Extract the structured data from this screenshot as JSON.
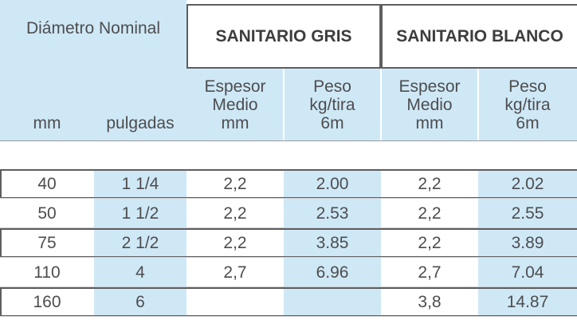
{
  "header": {
    "nominal_title": "Diámetro Nominal",
    "col_mm": "mm",
    "col_pulgadas": "pulgadas",
    "group_gris": "SANITARIO GRIS",
    "group_blanco": "SANITARIO BLANCO",
    "espesor": "Espesor\nMedio\nmm",
    "peso": "Peso\nkg/tira\n6m"
  },
  "rows": [
    {
      "mm": "40",
      "pulgadas": "1 1/4",
      "gris_espesor": "2,2",
      "gris_peso": "2.00",
      "blanco_espesor": "2,2",
      "blanco_peso": "2.02"
    },
    {
      "mm": "50",
      "pulgadas": "1 1/2",
      "gris_espesor": "2,2",
      "gris_peso": "2.53",
      "blanco_espesor": "2,2",
      "blanco_peso": "2.55"
    },
    {
      "mm": "75",
      "pulgadas": "2 1/2",
      "gris_espesor": "2,2",
      "gris_peso": "3.85",
      "blanco_espesor": "2,2",
      "blanco_peso": "3.89"
    },
    {
      "mm": "110",
      "pulgadas": "4",
      "gris_espesor": "2,7",
      "gris_peso": "6.96",
      "blanco_espesor": "2,7",
      "blanco_peso": "7.04"
    },
    {
      "mm": "160",
      "pulgadas": "6",
      "gris_espesor": "",
      "gris_peso": "",
      "blanco_espesor": "3,8",
      "blanco_peso": "14.87"
    }
  ],
  "colors": {
    "cell_blue": "#cfe8f6",
    "text": "#4d4d4f",
    "border": "#5e5e60"
  }
}
